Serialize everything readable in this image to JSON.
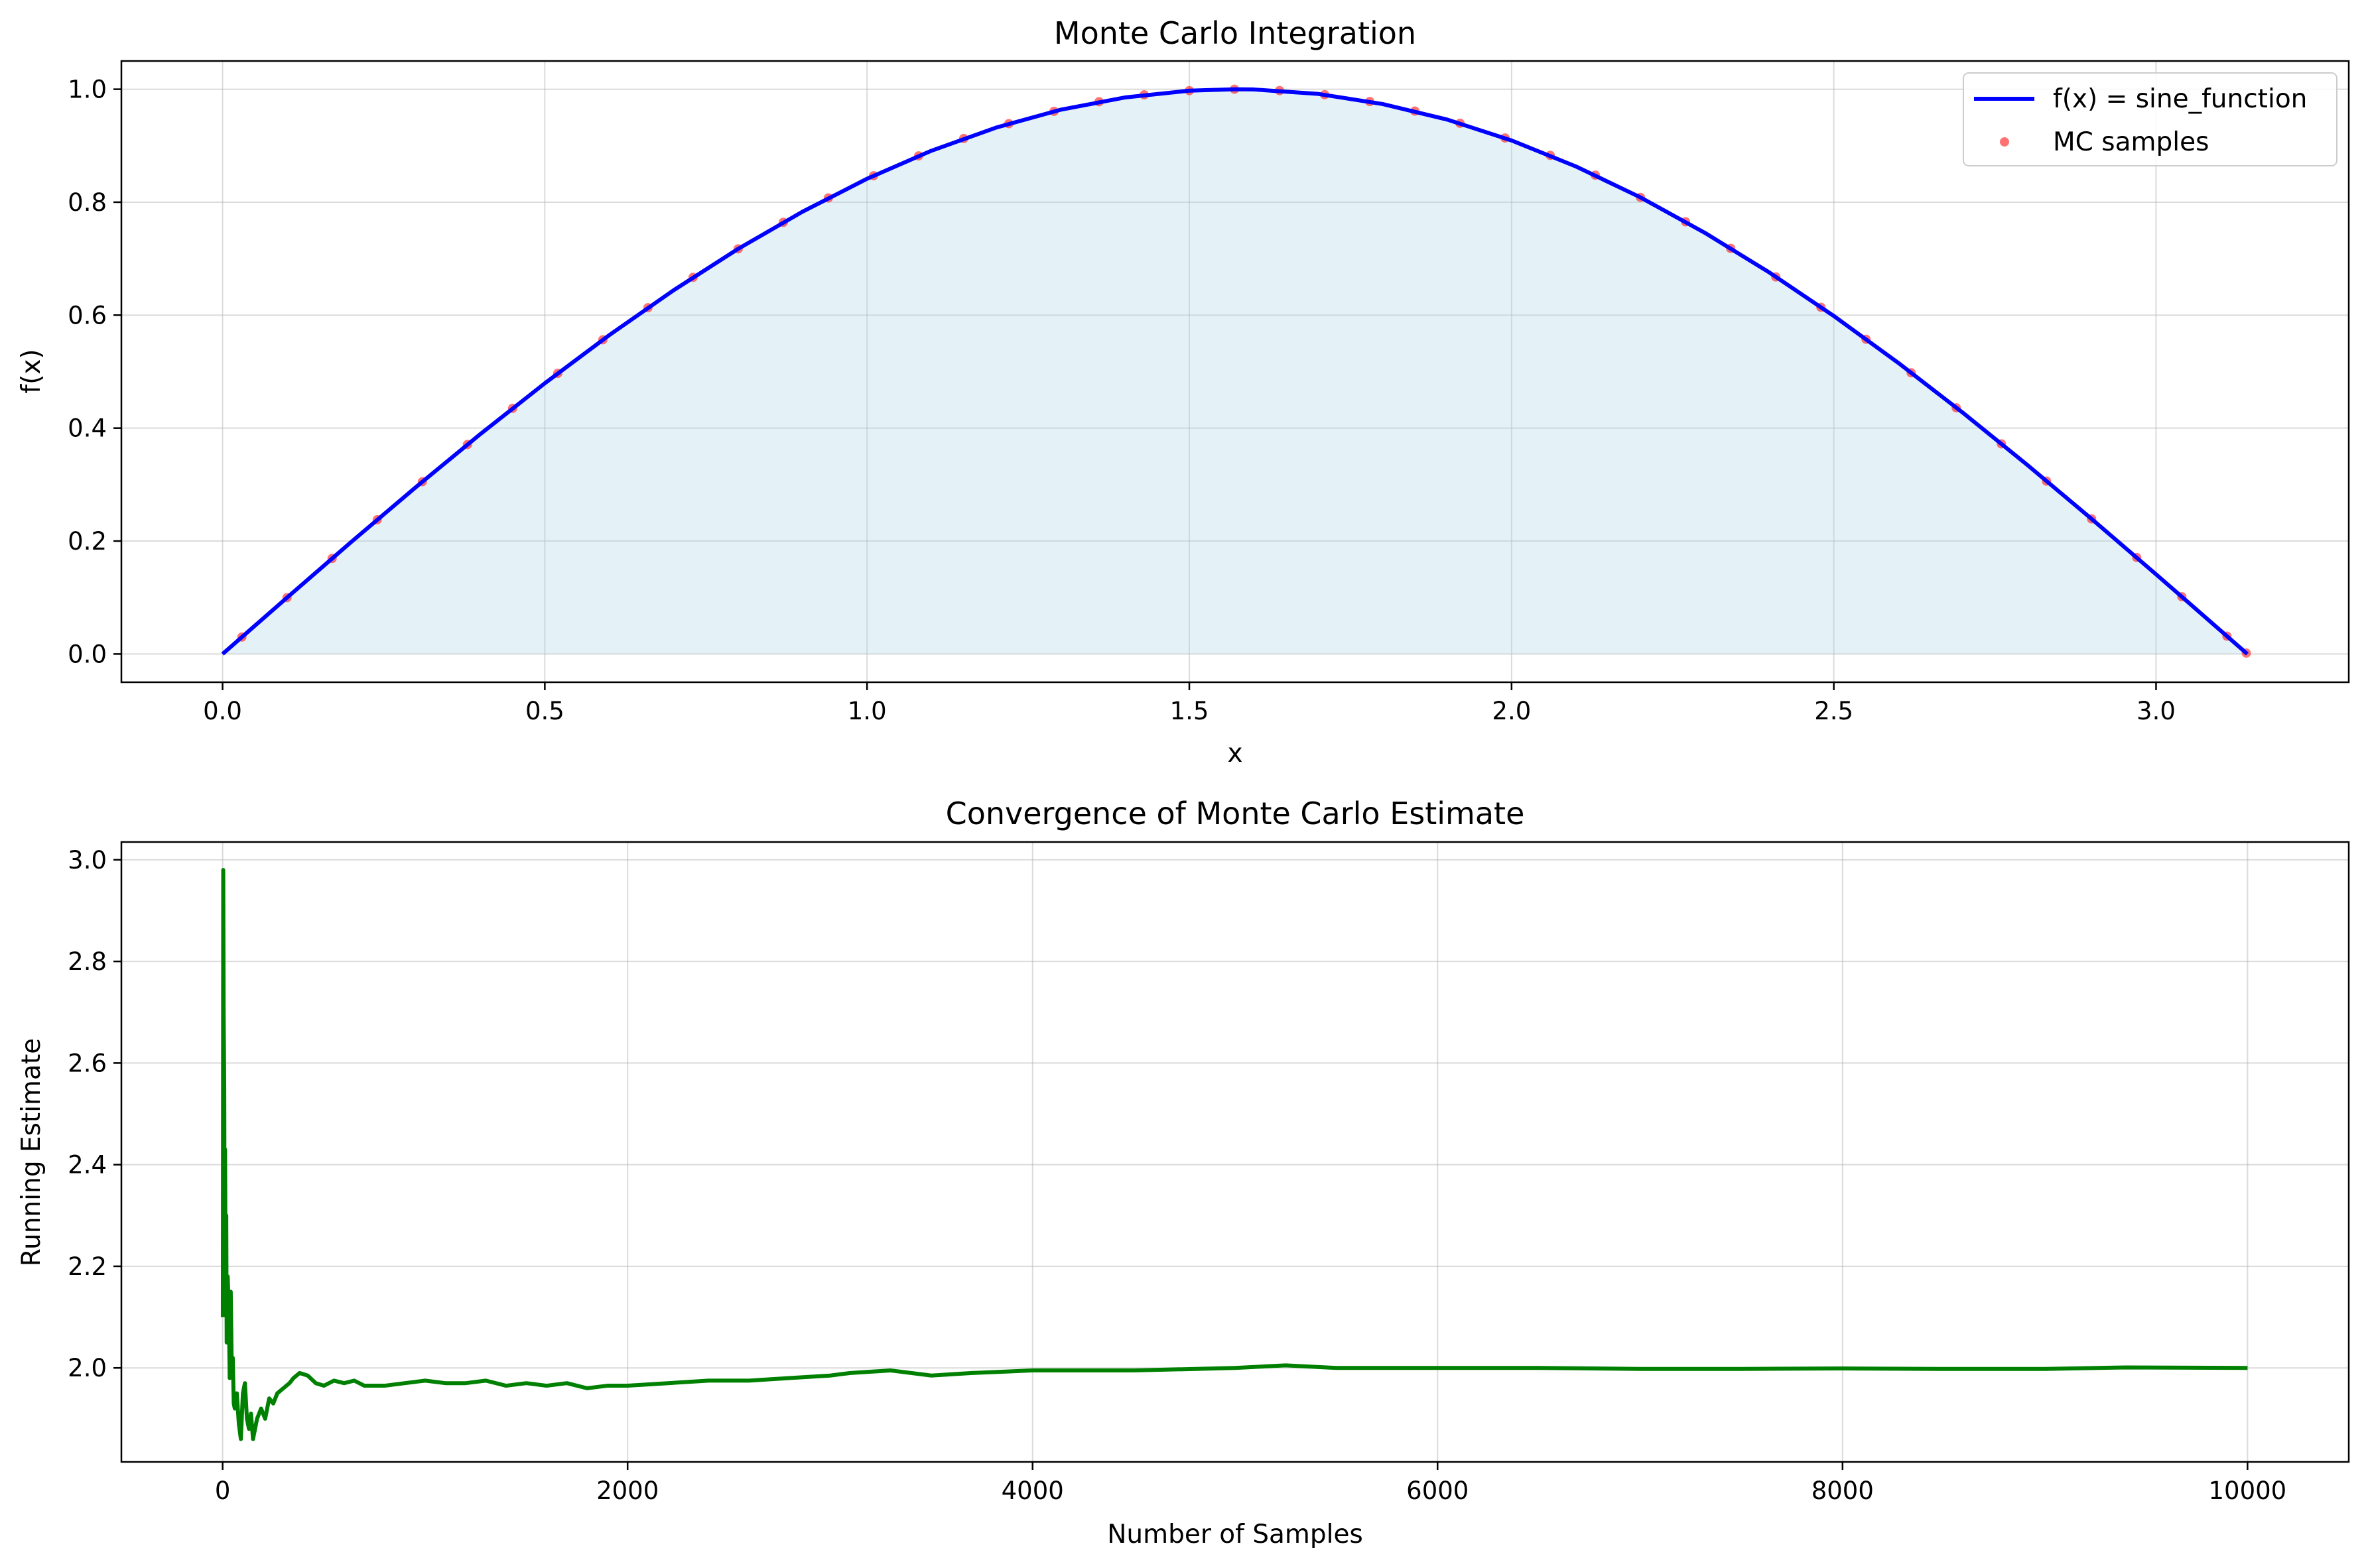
{
  "chart_data": [
    {
      "type": "line",
      "title": "Monte Carlo Integration",
      "xlabel": "x",
      "ylabel": "f(x)",
      "xlim": [
        -0.157,
        3.299
      ],
      "ylim": [
        -0.05,
        1.05
      ],
      "xticks": [
        0.0,
        0.5,
        1.0,
        1.5,
        2.0,
        2.5,
        3.0
      ],
      "xtick_labels": [
        "0.0",
        "0.5",
        "1.0",
        "1.5",
        "2.0",
        "2.5",
        "3.0"
      ],
      "yticks": [
        0.0,
        0.2,
        0.4,
        0.6,
        0.8,
        1.0
      ],
      "ytick_labels": [
        "0.0",
        "0.2",
        "0.4",
        "0.6",
        "0.8",
        "1.0"
      ],
      "grid": true,
      "legend_position": "top-right",
      "series": [
        {
          "name": "f(x) = sine_function",
          "kind": "line",
          "color": "#0000ff",
          "x": [
            0.0,
            0.1,
            0.2,
            0.3,
            0.4,
            0.5,
            0.6,
            0.7,
            0.8,
            0.9,
            1.0,
            1.1,
            1.2,
            1.3,
            1.4,
            1.5,
            1.5708,
            1.6,
            1.7,
            1.8,
            1.9,
            2.0,
            2.1,
            2.2,
            2.3,
            2.4,
            2.5,
            2.6,
            2.7,
            2.8,
            2.9,
            3.0,
            3.1,
            3.1416
          ],
          "y": [
            0.0,
            0.0998,
            0.1987,
            0.2955,
            0.3894,
            0.4794,
            0.5646,
            0.6442,
            0.7174,
            0.7833,
            0.8415,
            0.8912,
            0.932,
            0.9636,
            0.9854,
            0.9975,
            1.0,
            0.9996,
            0.9917,
            0.9738,
            0.9463,
            0.9093,
            0.8632,
            0.8085,
            0.7457,
            0.6755,
            0.5985,
            0.5155,
            0.4274,
            0.335,
            0.2392,
            0.1411,
            0.0416,
            0.0
          ]
        },
        {
          "name": "MC samples",
          "kind": "scatter",
          "color": "#ff0000",
          "x": [
            0.03,
            0.1,
            0.17,
            0.24,
            0.31,
            0.38,
            0.45,
            0.52,
            0.59,
            0.66,
            0.73,
            0.8,
            0.87,
            0.94,
            1.01,
            1.08,
            1.15,
            1.22,
            1.29,
            1.36,
            1.43,
            1.5,
            1.57,
            1.64,
            1.71,
            1.78,
            1.85,
            1.92,
            1.99,
            2.06,
            2.13,
            2.2,
            2.27,
            2.34,
            2.41,
            2.48,
            2.55,
            2.62,
            2.69,
            2.76,
            2.83,
            2.9,
            2.97,
            3.04,
            3.11,
            3.14
          ],
          "y": [
            0.03,
            0.0998,
            0.1692,
            0.2377,
            0.3051,
            0.371,
            0.435,
            0.4969,
            0.5564,
            0.6131,
            0.6669,
            0.7174,
            0.7643,
            0.8076,
            0.8468,
            0.882,
            0.9128,
            0.9391,
            0.9608,
            0.9779,
            0.9901,
            0.9975,
            1.0,
            0.9976,
            0.9903,
            0.9782,
            0.9613,
            0.9398,
            0.9137,
            0.8829,
            0.8478,
            0.8085,
            0.7653,
            0.7182,
            0.6676,
            0.6139,
            0.5573,
            0.4979,
            0.4359,
            0.3721,
            0.3061,
            0.2392,
            0.1708,
            0.1014,
            0.0316,
            0.0016
          ]
        }
      ],
      "fill_under_curve": {
        "color": "#add8e6",
        "opacity": 0.33
      }
    },
    {
      "type": "line",
      "title": "Convergence of Monte Carlo Estimate",
      "xlabel": "Number of Samples",
      "ylabel": "Running Estimate",
      "xlim": [
        -500,
        10500
      ],
      "ylim": [
        1.815,
        3.035
      ],
      "xticks": [
        0,
        2000,
        4000,
        6000,
        8000,
        10000
      ],
      "xtick_labels": [
        "0",
        "2000",
        "4000",
        "6000",
        "8000",
        "10000"
      ],
      "yticks": [
        2.0,
        2.2,
        2.4,
        2.6,
        2.8,
        3.0
      ],
      "ytick_labels": [
        "2.0",
        "2.2",
        "2.4",
        "2.6",
        "2.8",
        "3.0"
      ],
      "grid": true,
      "series": [
        {
          "color": "#008000",
          "x": [
            1,
            3,
            5,
            8,
            10,
            12,
            15,
            18,
            20,
            25,
            30,
            35,
            40,
            45,
            50,
            55,
            60,
            70,
            80,
            90,
            100,
            110,
            120,
            130,
            140,
            150,
            170,
            190,
            210,
            230,
            250,
            270,
            300,
            330,
            350,
            380,
            420,
            460,
            500,
            550,
            600,
            650,
            700,
            800,
            900,
            1000,
            1100,
            1200,
            1300,
            1400,
            1500,
            1600,
            1700,
            1800,
            1900,
            2000,
            2200,
            2400,
            2600,
            2800,
            3000,
            3100,
            3300,
            3500,
            3700,
            4000,
            4500,
            5000,
            5250,
            5500,
            5750,
            6000,
            6500,
            7000,
            7500,
            8000,
            8500,
            9000,
            9400,
            10000
          ],
          "y": [
            2.1,
            2.98,
            2.7,
            2.55,
            2.2,
            2.43,
            2.15,
            2.3,
            2.05,
            2.18,
            2.12,
            1.98,
            2.15,
            2.0,
            2.02,
            1.93,
            1.92,
            1.95,
            1.89,
            1.86,
            1.95,
            1.97,
            1.9,
            1.88,
            1.91,
            1.86,
            1.9,
            1.92,
            1.9,
            1.94,
            1.93,
            1.95,
            1.96,
            1.97,
            1.98,
            1.99,
            1.985,
            1.97,
            1.965,
            1.975,
            1.97,
            1.975,
            1.965,
            1.965,
            1.97,
            1.975,
            1.97,
            1.97,
            1.975,
            1.965,
            1.97,
            1.965,
            1.97,
            1.96,
            1.965,
            1.965,
            1.97,
            1.975,
            1.975,
            1.98,
            1.985,
            1.99,
            1.995,
            1.985,
            1.99,
            1.995,
            1.995,
            2.0,
            2.005,
            2.0,
            2.0,
            2.0,
            2.0,
            1.998,
            1.998,
            1.999,
            1.998,
            1.998,
            2.001,
            2.0
          ]
        }
      ]
    }
  ]
}
